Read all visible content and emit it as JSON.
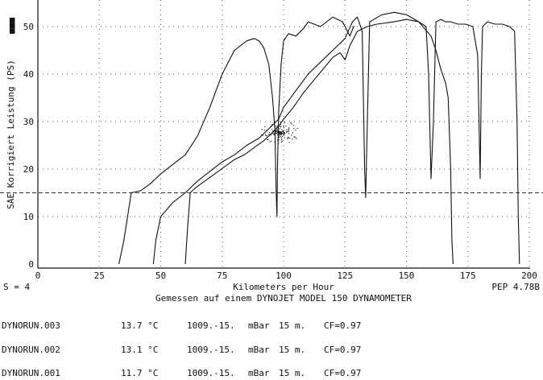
{
  "chart_data": {
    "type": "line",
    "title": "Gemessen auf einem DYNOJET MODEL 150 DYNAMOMETER",
    "xlabel": "Kilometers per Hour",
    "ylabel": "SAE Korrigiert Leistung (PS)",
    "xlim": [
      0,
      200
    ],
    "ylim": [
      0,
      60
    ],
    "x_ticks": [
      "0",
      "25",
      "50",
      "75",
      "100",
      "125",
      "150",
      "175",
      "200"
    ],
    "y_ticks": [
      "0",
      "10",
      "20",
      "30",
      "40",
      "50"
    ],
    "grid": "dotted",
    "reference_line_y": 15,
    "left_footer": "S = 4",
    "right_footer": "PEP 4.78B",
    "top_left_mark": "■■■",
    "series": [
      {
        "name": "DYNORUN.003",
        "x": [
          33,
          35,
          38,
          42,
          46,
          50,
          55,
          60,
          65,
          70,
          75,
          80,
          85,
          88,
          90,
          92,
          94,
          95.5,
          96.5,
          97,
          97.3,
          97.5,
          98,
          99,
          100,
          102,
          105,
          108,
          110,
          115,
          120,
          124,
          127,
          128.5,
          129
        ],
        "y": [
          0,
          5,
          15,
          15.5,
          17,
          19,
          21,
          23,
          27,
          33,
          40,
          45,
          47,
          47.5,
          47,
          45.5,
          42,
          35,
          28,
          15,
          10,
          20,
          32,
          42,
          47,
          48.5,
          48,
          49.5,
          51,
          50,
          52,
          51,
          48,
          50,
          50
        ]
      },
      {
        "name": "DYNORUN.002",
        "x": [
          47,
          48,
          50,
          55,
          60,
          65,
          70,
          75,
          80,
          85,
          90,
          95,
          98,
          100,
          105,
          110,
          115,
          120,
          125,
          128,
          130,
          132,
          133,
          133.4,
          134,
          135,
          140,
          145,
          150,
          155,
          160,
          162,
          164,
          166,
          167,
          168,
          168.5,
          169
        ],
        "y": [
          0,
          5,
          10,
          13,
          15,
          17.5,
          19.5,
          21.5,
          23,
          25,
          26.5,
          29,
          30.5,
          33,
          36.5,
          40,
          42.5,
          45,
          47.5,
          51,
          52,
          49,
          20,
          14,
          28,
          51,
          52.5,
          53,
          52.5,
          51,
          48,
          45,
          41,
          38,
          35,
          20,
          5,
          0
        ]
      },
      {
        "name": "DYNORUN.001",
        "x": [
          60,
          61,
          62,
          64,
          68,
          72,
          76,
          80,
          84,
          88,
          92,
          95,
          98,
          100,
          104,
          108,
          112,
          116,
          120,
          123,
          125,
          127,
          130,
          134,
          138,
          145,
          150,
          155,
          158,
          159,
          160,
          161,
          162,
          164,
          166,
          168,
          171,
          174,
          177,
          179,
          180,
          180.5,
          181,
          183,
          186,
          189,
          192,
          194,
          195,
          195.5,
          196
        ],
        "y": [
          0,
          8,
          15,
          16,
          17.5,
          19,
          20.5,
          22,
          23,
          24.5,
          26,
          27.5,
          29,
          30.5,
          33,
          36,
          38.5,
          41,
          43.5,
          44.5,
          43,
          46,
          49,
          50,
          50.5,
          51,
          51.5,
          51,
          50,
          40,
          18,
          30,
          51,
          51.5,
          51,
          51,
          50.5,
          50.5,
          50,
          44,
          18,
          40,
          50,
          51,
          50.5,
          50.5,
          50,
          49,
          30,
          10,
          0
        ]
      }
    ]
  },
  "runs": [
    {
      "name": "DYNORUN.003",
      "temp": "13.7 °C",
      "pressure": "1009.-15.",
      "unit": "mBar",
      "alt": "15 m.",
      "cf": "CF=0.97"
    },
    {
      "name": "DYNORUN.002",
      "temp": "13.1 °C",
      "pressure": "1009.-15.",
      "unit": "mBar",
      "alt": "15 m.",
      "cf": "CF=0.97"
    },
    {
      "name": "DYNORUN.001",
      "temp": "11.7 °C",
      "pressure": "1009.-15.",
      "unit": "mBar",
      "alt": "15 m.",
      "cf": "CF=0.97"
    }
  ]
}
